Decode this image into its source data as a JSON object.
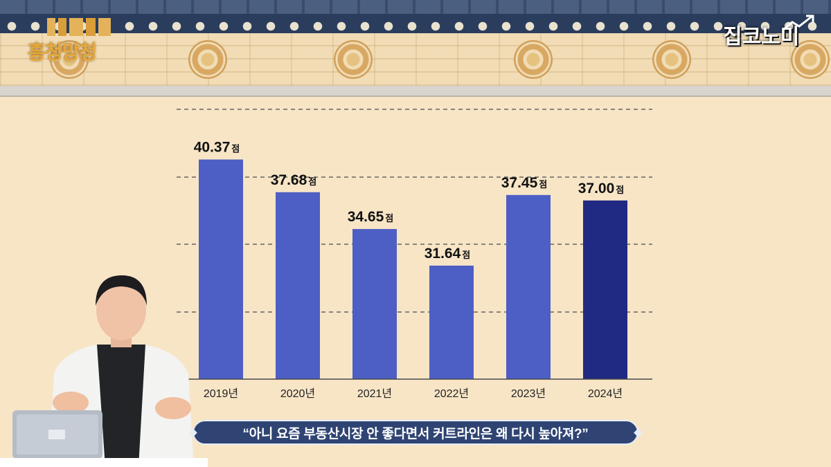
{
  "branding": {
    "left_logo_text": "흥청망청",
    "right_logo_text": "집코노미"
  },
  "caption": {
    "text": "“아니 요즘 부동산시장 안 좋다면서 커트라인은 왜 다시 높아져?”"
  },
  "colors": {
    "bar": "#4d5fc4",
    "bar_highlight": "#212a82",
    "background": "#f7e5c6",
    "roof": "#2b3d5c",
    "caption_bg": "#2f4473"
  },
  "chart_data": {
    "type": "bar",
    "categories": [
      "2019년",
      "2020년",
      "2021년",
      "2022년",
      "2023년",
      "2024년"
    ],
    "values": [
      40.37,
      37.68,
      34.65,
      31.64,
      37.45,
      37.0
    ],
    "value_labels": [
      "40.37",
      "37.68",
      "34.65",
      "31.64",
      "37.45",
      "37.00"
    ],
    "value_unit": "점",
    "highlight_index": 5,
    "title": "",
    "xlabel": "",
    "ylabel": "",
    "ylim": [
      22.3,
      44.5
    ],
    "grid": true,
    "grid_style": "dashed horizontal",
    "legend": "none"
  },
  "icons": {
    "presenter": "presenter-figure",
    "laptop": "laptop-icon",
    "trend_arrow": "trend-arrow-icon"
  }
}
